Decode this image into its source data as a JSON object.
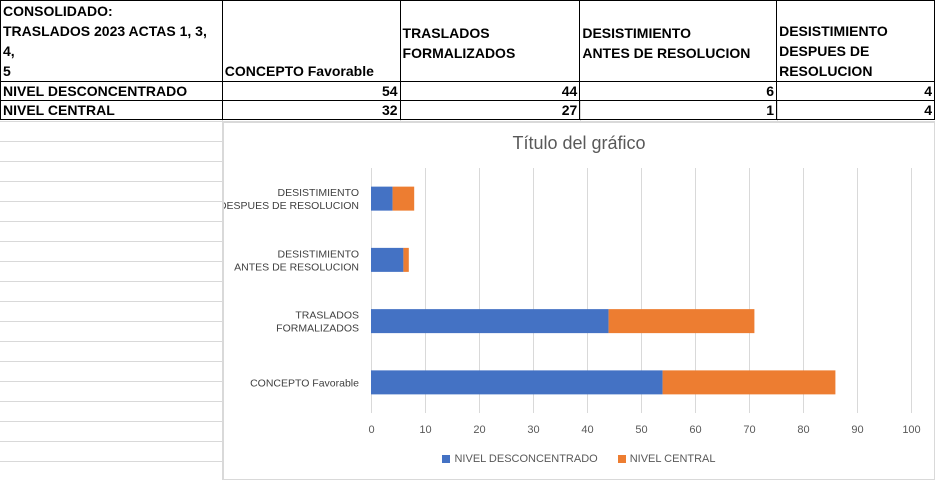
{
  "table": {
    "headers": [
      "CONSOLIDADO:\nTRASLADOS 2023 ACTAS 1, 3, 4,\n5",
      "CONCEPTO Favorable",
      "TRASLADOS\n FORMALIZADOS",
      "DESISTIMIENTO\nANTES DE RESOLUCION",
      "DESISTIMIENTO\nDESPUES DE\nRESOLUCION"
    ],
    "rows": [
      {
        "label": "NIVEL DESCONCENTRADO",
        "values": [
          "54",
          "44",
          "6",
          "4"
        ]
      },
      {
        "label": "NIVEL CENTRAL",
        "values": [
          "32",
          "27",
          "1",
          "4"
        ]
      }
    ]
  },
  "chart_data": {
    "type": "bar",
    "orientation": "horizontal",
    "stacked": true,
    "title": "Título del gráfico",
    "categories": [
      [
        "CONCEPTO Favorable"
      ],
      [
        "TRASLADOS",
        "FORMALIZADOS"
      ],
      [
        "DESISTIMIENTO",
        "ANTES DE RESOLUCION"
      ],
      [
        "DESISTIMIENTO",
        "DESPUES DE RESOLUCION"
      ]
    ],
    "series": [
      {
        "name": "NIVEL DESCONCENTRADO",
        "color": "#4472c4",
        "values": [
          54,
          44,
          6,
          4
        ]
      },
      {
        "name": "NIVEL CENTRAL",
        "color": "#ed7d31",
        "values": [
          32,
          27,
          1,
          4
        ]
      }
    ],
    "xlim": [
      0,
      100
    ],
    "xticks": [
      0,
      10,
      20,
      30,
      40,
      50,
      60,
      70,
      80,
      90,
      100
    ],
    "legend_position": "bottom",
    "grid": true
  }
}
